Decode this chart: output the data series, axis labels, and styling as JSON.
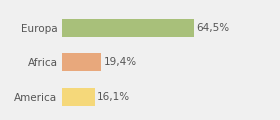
{
  "categories": [
    "Europa",
    "Africa",
    "America"
  ],
  "values": [
    64.5,
    19.4,
    16.1
  ],
  "labels": [
    "64,5%",
    "19,4%",
    "16,1%"
  ],
  "bar_colors": [
    "#a8c07a",
    "#e8a87c",
    "#f5d87a"
  ],
  "background_color": "#f0f0f0",
  "xlim": [
    0,
    90
  ],
  "label_fontsize": 7.5,
  "tick_fontsize": 7.5,
  "bar_height": 0.52
}
